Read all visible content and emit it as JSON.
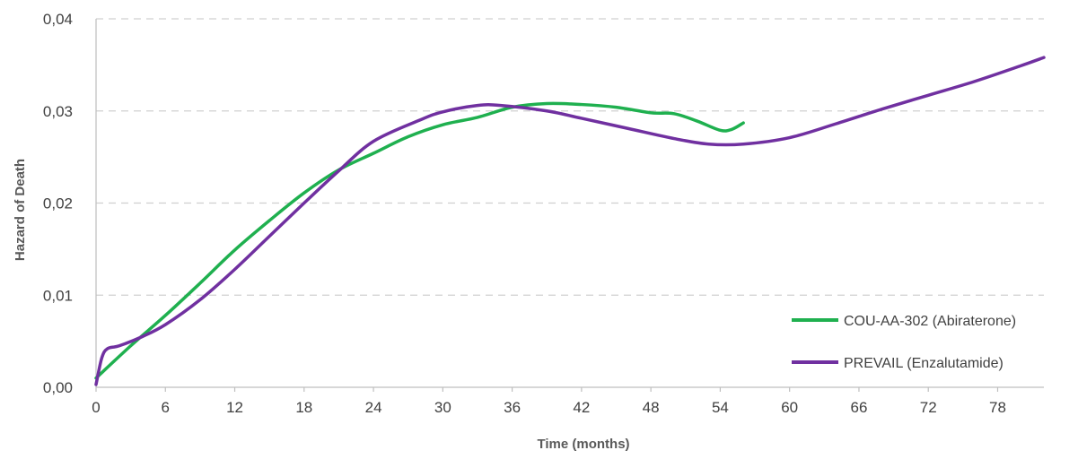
{
  "chart_data": {
    "type": "line",
    "title": "",
    "xlabel": "Time (months)",
    "ylabel": "Hazard of Death",
    "xlim": [
      0,
      82
    ],
    "ylim": [
      0,
      0.04
    ],
    "x_ticks": [
      0,
      6,
      12,
      18,
      24,
      30,
      36,
      42,
      48,
      54,
      60,
      66,
      72,
      78
    ],
    "x_tick_labels": [
      "0",
      "6",
      "12",
      "18",
      "24",
      "30",
      "36",
      "42",
      "48",
      "54",
      "60",
      "66",
      "72",
      "78"
    ],
    "y_ticks": [
      0,
      0.01,
      0.02,
      0.03,
      0.04
    ],
    "y_tick_labels": [
      "0,00",
      "0,01",
      "0,02",
      "0,03",
      "0,04"
    ],
    "grid": true,
    "legend_position": "bottom-right",
    "series": [
      {
        "name": "COU-AA-302 (Abiraterone)",
        "color": "#1fb04f",
        "x": [
          0,
          3,
          6,
          9,
          12,
          15,
          18,
          21,
          24,
          27,
          30,
          33,
          36,
          39,
          42,
          45,
          48,
          50,
          52,
          54,
          55,
          56
        ],
        "y": [
          0.001,
          0.0045,
          0.0078,
          0.0113,
          0.0149,
          0.0181,
          0.0211,
          0.0236,
          0.0254,
          0.0272,
          0.0285,
          0.0293,
          0.0304,
          0.0308,
          0.0307,
          0.0304,
          0.0298,
          0.0297,
          0.0289,
          0.0279,
          0.028,
          0.0287
        ]
      },
      {
        "name": "PREVAIL (Enzalutamide)",
        "color": "#7030a0",
        "x": [
          0,
          0.5,
          1,
          2,
          4,
          6,
          9,
          12,
          15,
          18,
          21,
          24,
          28,
          30,
          33,
          35,
          39,
          42,
          46,
          50,
          53,
          56,
          60,
          64,
          68,
          72,
          76,
          80,
          82
        ],
        "y": [
          0.0003,
          0.0032,
          0.0042,
          0.0045,
          0.0055,
          0.0068,
          0.0095,
          0.0128,
          0.0164,
          0.02,
          0.0235,
          0.0267,
          0.029,
          0.0299,
          0.0306,
          0.0306,
          0.03,
          0.0292,
          0.0281,
          0.027,
          0.0264,
          0.0264,
          0.0271,
          0.0286,
          0.0302,
          0.0317,
          0.0332,
          0.0349,
          0.0358
        ]
      }
    ]
  }
}
